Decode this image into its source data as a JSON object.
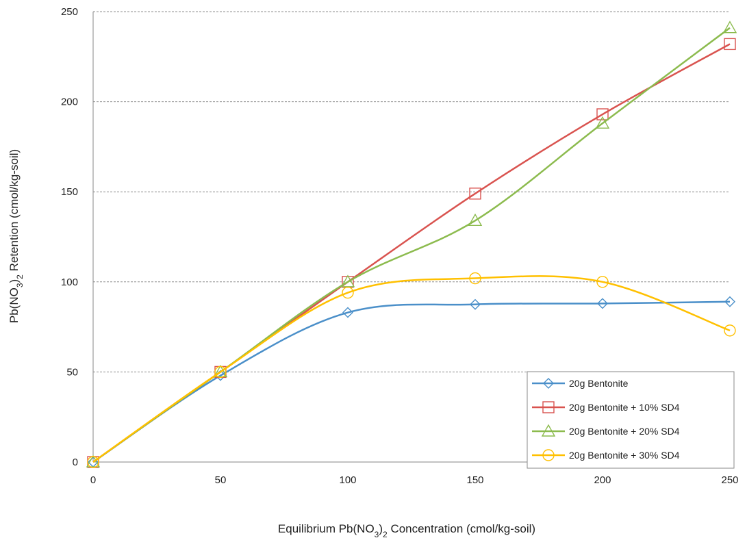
{
  "chart_data": {
    "type": "line",
    "xlabel": {
      "pre": "Equilibrium  Pb(NO",
      "sub": "3",
      "post": ")",
      "sub2": "2",
      "tail": "  Concentration (cmol/kg-soil)"
    },
    "ylabel": {
      "pre": "Pb(NO",
      "sub": "3",
      "post": ")",
      "sub2": "2",
      "tail": " Retention (cmol/kg-soil)"
    },
    "xlim": [
      0,
      250
    ],
    "ylim": [
      0,
      250
    ],
    "xticks": [
      0,
      50,
      100,
      150,
      200,
      250
    ],
    "yticks": [
      0,
      50,
      100,
      150,
      200,
      250
    ],
    "grid": "horizontal dashed",
    "legend_position": "bottom-right",
    "series": [
      {
        "name": "20g Bentonite",
        "color": "#4a8fc9",
        "marker": "diamond",
        "x": [
          0,
          50,
          100,
          150,
          200,
          250
        ],
        "y": [
          0,
          48,
          83,
          87.5,
          88,
          89
        ]
      },
      {
        "name": "20g Bentonite + 10% SD4",
        "color": "#d9534f",
        "marker": "square",
        "x": [
          0,
          50,
          100,
          150,
          200,
          250
        ],
        "y": [
          0,
          50,
          100,
          149,
          193,
          232
        ]
      },
      {
        "name": "20g Bentonite + 20% SD4",
        "color": "#8cbb4e",
        "marker": "triangle",
        "x": [
          0,
          50,
          100,
          150,
          200,
          250
        ],
        "y": [
          0,
          50,
          100,
          134,
          188,
          241
        ]
      },
      {
        "name": "20g Bentonite + 30% SD4",
        "color": "#ffc000",
        "marker": "circle",
        "x": [
          0,
          50,
          100,
          150,
          200,
          250
        ],
        "y": [
          0,
          50,
          94,
          102,
          100,
          73
        ]
      }
    ]
  }
}
